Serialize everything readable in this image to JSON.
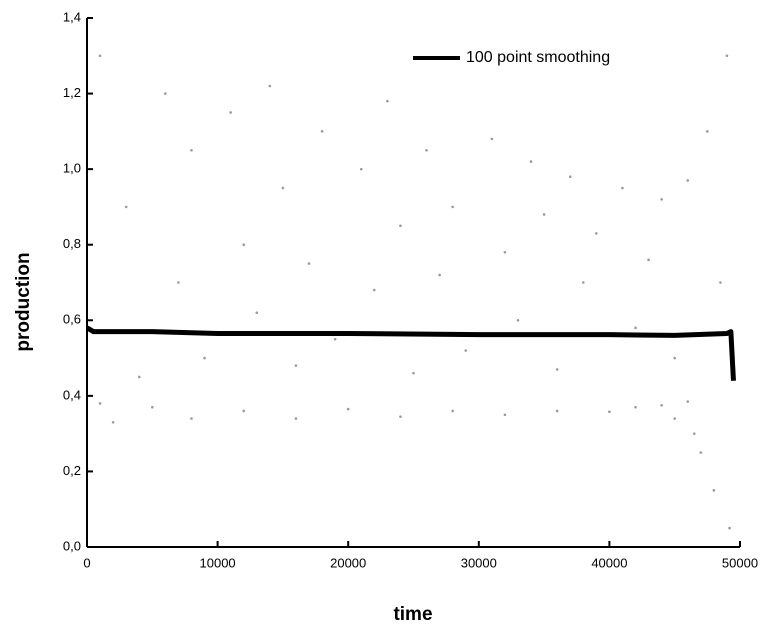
{
  "chart_data": {
    "type": "scatter",
    "xlabel": "time",
    "ylabel": "production",
    "xlim": [
      0,
      50000
    ],
    "ylim": [
      0,
      1.4
    ],
    "xticks": [
      0,
      10000,
      20000,
      30000,
      40000,
      50000
    ],
    "yticks": [
      {
        "value": 0,
        "label": "0,0"
      },
      {
        "value": 0.2,
        "label": "0,2"
      },
      {
        "value": 0.4,
        "label": "0,4"
      },
      {
        "value": 0.6,
        "label": "0,6"
      },
      {
        "value": 0.8,
        "label": "0,8"
      },
      {
        "value": 1.0,
        "label": "1,0"
      },
      {
        "value": 1.2,
        "label": "1,2"
      },
      {
        "value": 1.4,
        "label": "1,4"
      }
    ],
    "legend": "top-right",
    "series": [
      {
        "type": "scatter",
        "color": "#9a9a9a",
        "x": [
          1000,
          3000,
          4000,
          6000,
          7000,
          8000,
          9000,
          11000,
          12000,
          13000,
          14000,
          15000,
          16000,
          17000,
          18000,
          19000,
          21000,
          22000,
          23000,
          24000,
          25000,
          26000,
          27000,
          28000,
          29000,
          31000,
          32000,
          33000,
          34000,
          35000,
          36000,
          37000,
          38000,
          39000,
          41000,
          42000,
          43000,
          44000,
          45000,
          46000,
          47000,
          47500,
          48000,
          48500,
          49000,
          49200,
          1000,
          2000,
          5000,
          8000,
          12000,
          16000,
          20000,
          24000,
          28000,
          32000,
          36000,
          40000,
          42000,
          44000,
          45000,
          46000,
          46500
        ],
        "values": [
          1.3,
          0.9,
          0.45,
          1.2,
          0.7,
          1.05,
          0.5,
          1.15,
          0.8,
          0.62,
          1.22,
          0.95,
          0.48,
          0.75,
          1.1,
          0.55,
          1.0,
          0.68,
          1.18,
          0.85,
          0.46,
          1.05,
          0.72,
          0.9,
          0.52,
          1.08,
          0.78,
          0.6,
          1.02,
          0.88,
          0.47,
          0.98,
          0.7,
          0.83,
          0.95,
          0.58,
          0.76,
          0.92,
          0.5,
          0.97,
          0.25,
          1.1,
          0.15,
          0.7,
          1.3,
          0.05,
          0.38,
          0.33,
          0.37,
          0.34,
          0.36,
          0.34,
          0.365,
          0.345,
          0.36,
          0.35,
          0.36,
          0.358,
          0.37,
          0.375,
          0.34,
          0.385,
          0.3
        ]
      },
      {
        "type": "line",
        "name": "100 point smoothing",
        "color": "#000000",
        "x": [
          0,
          500,
          5000,
          10000,
          20000,
          30000,
          40000,
          45000,
          49000,
          49300,
          49500
        ],
        "values": [
          0.58,
          0.57,
          0.57,
          0.565,
          0.565,
          0.562,
          0.562,
          0.56,
          0.565,
          0.57,
          0.44
        ]
      }
    ]
  }
}
